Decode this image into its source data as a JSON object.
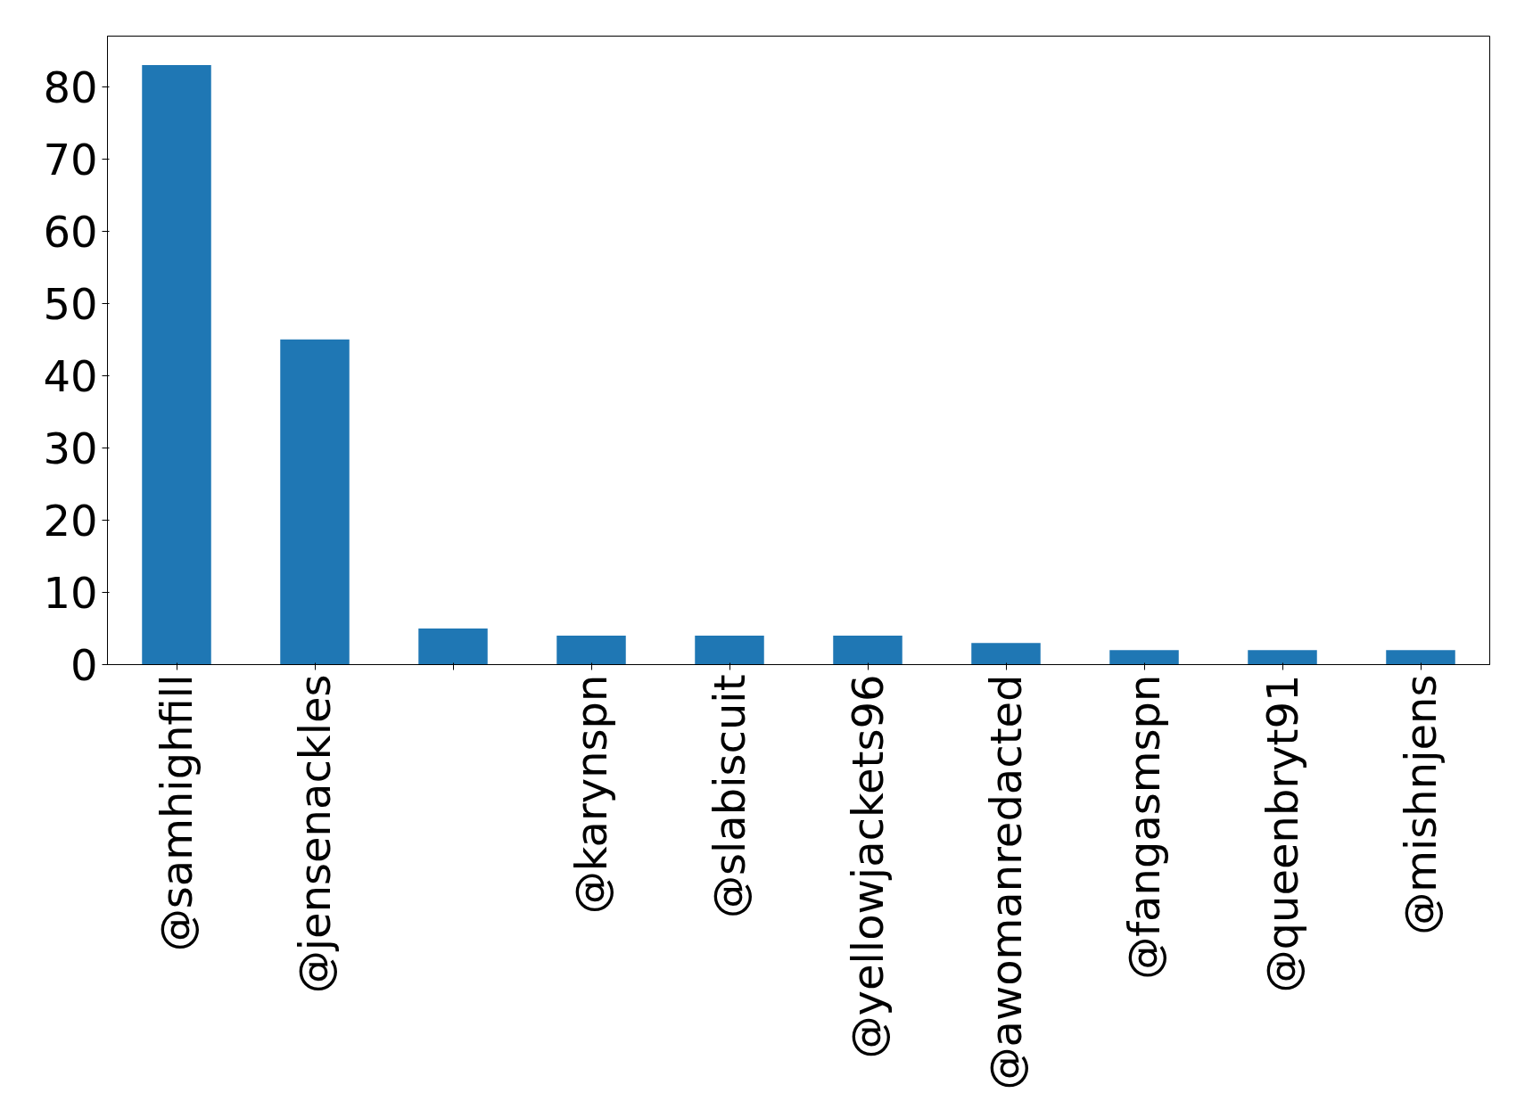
{
  "chart_data": {
    "type": "bar",
    "categories": [
      "@samhighfill",
      "@jensenackles",
      null,
      "@karynspn",
      "@slabiscuit",
      "@yellowjackets96",
      "@awomanredacted",
      "@fangasmspn",
      "@queenbryt91",
      "@mishnjens"
    ],
    "values": [
      83,
      45,
      5,
      4,
      4,
      4,
      3,
      2,
      2,
      2
    ],
    "color": "#1f77b4",
    "ylim": [
      0,
      87
    ],
    "yticks": [
      0,
      10,
      20,
      30,
      40,
      50,
      60,
      70,
      80
    ],
    "grid": false
  }
}
